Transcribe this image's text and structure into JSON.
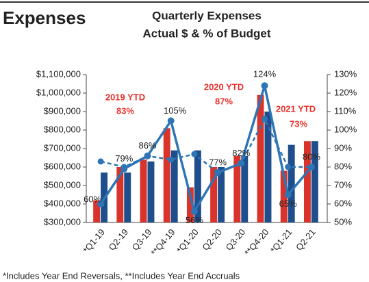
{
  "header": "Expenses",
  "chart_data": {
    "type": "bar",
    "title": [
      "Quarterly Expenses",
      "Actual $ & % of Budget"
    ],
    "categories": [
      "*Q1-19",
      "Q2-19",
      "Q3-19",
      "**Q4-19",
      "*Q1-20",
      "Q2-20",
      "Q3-20",
      "**Q4-20",
      "*Q1-21",
      "Q2-21"
    ],
    "series": [
      {
        "type": "bar",
        "color": "#d9342b",
        "values": [
          420000,
          600000,
          640000,
          810000,
          490000,
          600000,
          660000,
          990000,
          580000,
          740000
        ]
      },
      {
        "type": "bar",
        "color": "#1f4e8c",
        "values": [
          570000,
          570000,
          630000,
          690000,
          690000,
          600000,
          660000,
          900000,
          720000,
          740000
        ]
      },
      {
        "type": "line",
        "axis": "y2",
        "color": "#2e75b6",
        "dashed": true,
        "values": [
          83,
          80,
          86,
          84,
          87,
          77,
          82,
          106,
          80,
          80
        ]
      },
      {
        "type": "line",
        "axis": "y2",
        "color": "#2e75b6",
        "dashed": false,
        "values": [
          60,
          79,
          86,
          105,
          56,
          77,
          82,
          124,
          65,
          80
        ],
        "value_labels": [
          "60%",
          "79%",
          "86%",
          "105%",
          "56%",
          "77%",
          "82%",
          "124%",
          "65%",
          "80%"
        ]
      }
    ],
    "ylim": [
      300000,
      1100000
    ],
    "yticks": [
      {
        "value": 300000,
        "label": "$300,000"
      },
      {
        "value": 400000,
        "label": "$400,000"
      },
      {
        "value": 500000,
        "label": "$500,000"
      },
      {
        "value": 600000,
        "label": "$600,000"
      },
      {
        "value": 700000,
        "label": "$700,000"
      },
      {
        "value": 800000,
        "label": "$800,000"
      },
      {
        "value": 900000,
        "label": "$900,000"
      },
      {
        "value": 1000000,
        "label": "$1,000,000"
      },
      {
        "value": 1100000,
        "label": "$1,100,000"
      }
    ],
    "y2lim": [
      50,
      130
    ],
    "y2ticks": [
      {
        "value": 50,
        "label": "50%"
      },
      {
        "value": 60,
        "label": "60%"
      },
      {
        "value": 70,
        "label": "70%"
      },
      {
        "value": 80,
        "label": "80%"
      },
      {
        "value": 90,
        "label": "90%"
      },
      {
        "value": 100,
        "label": "100%"
      },
      {
        "value": 110,
        "label": "110%"
      },
      {
        "value": 120,
        "label": "120%"
      },
      {
        "value": 130,
        "label": "130%"
      }
    ],
    "annotations": [
      "2019 YTD",
      "83%",
      "2020 YTD",
      "87%",
      "2021 YTD",
      "73%"
    ],
    "footnote": "*Includes Year End Reversals, **Includes Year End Accruals"
  }
}
